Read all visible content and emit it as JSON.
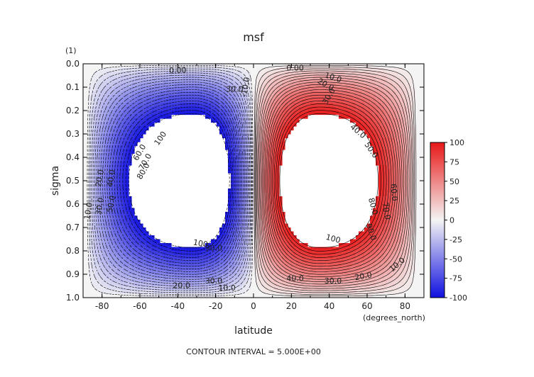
{
  "chart_data": {
    "type": "heatmap",
    "title": "msf",
    "xlabel": "latitude",
    "xunits": "(degrees_north)",
    "ylabel": "sigma",
    "yunits": "(1)",
    "footer": "CONTOUR INTERVAL = 5.000E+00",
    "xlim": [
      -90,
      90
    ],
    "ylim": [
      1.0,
      0.0
    ],
    "x_ticks": [
      "-80",
      "-60",
      "-40",
      "-20",
      "0",
      "20",
      "40",
      "60",
      "80"
    ],
    "x_tick_values": [
      -80,
      -60,
      -40,
      -20,
      0,
      20,
      40,
      60,
      80
    ],
    "y_ticks": [
      "0.0",
      "0.1",
      "0.2",
      "0.3",
      "0.4",
      "0.5",
      "0.6",
      "0.7",
      "0.8",
      "0.9",
      "1.0"
    ],
    "y_tick_values": [
      0.0,
      0.1,
      0.2,
      0.3,
      0.4,
      0.5,
      0.6,
      0.7,
      0.8,
      0.9,
      1.0
    ],
    "colorbar": {
      "ticks": [
        "100",
        "75",
        "50",
        "25",
        "0",
        "-25",
        "-50",
        "-75",
        "-100"
      ],
      "tick_values": [
        100,
        75,
        50,
        25,
        0,
        -25,
        -50,
        -75,
        -100
      ],
      "min": -100,
      "max": 100,
      "colors": {
        "negative": "#1010e0",
        "zero": "#f4f4f4",
        "positive": "#e81818"
      }
    },
    "contour_interval": 5,
    "cells": {
      "south": {
        "sign": -1,
        "peak_lat": -32,
        "peak_sigma": 0.5,
        "edge_lat": -88,
        "peak_value": -100
      },
      "north": {
        "sign": 1,
        "peak_lat": 35,
        "peak_sigma": 0.5,
        "edge_lat": 86,
        "peak_value": 100
      }
    },
    "contour_labels": [
      {
        "text": "0.00",
        "lat": -40,
        "sigma": 0.03,
        "rot": -2
      },
      {
        "text": "0.00",
        "lat": 22,
        "sigma": 0.02,
        "rot": 0
      },
      {
        "text": "10.0",
        "lat": 42,
        "sigma": 0.06,
        "rot": 18
      },
      {
        "text": "20.0",
        "lat": 38,
        "sigma": 0.09,
        "rot": 30
      },
      {
        "text": "30.0",
        "lat": 40,
        "sigma": 0.14,
        "rot": -60
      },
      {
        "text": "40.0",
        "lat": 55,
        "sigma": 0.29,
        "rot": 40
      },
      {
        "text": "50.0",
        "lat": 62,
        "sigma": 0.37,
        "rot": 55
      },
      {
        "text": "60.0",
        "lat": 74,
        "sigma": 0.55,
        "rot": 85
      },
      {
        "text": "70.0",
        "lat": 70,
        "sigma": 0.63,
        "rot": 80
      },
      {
        "text": "80.0",
        "lat": 63,
        "sigma": 0.61,
        "rot": 75
      },
      {
        "text": "90.0",
        "lat": 62,
        "sigma": 0.72,
        "rot": 70
      },
      {
        "text": "100",
        "lat": 42,
        "sigma": 0.75,
        "rot": 15
      },
      {
        "text": "40.0",
        "lat": 22,
        "sigma": 0.92,
        "rot": 0
      },
      {
        "text": "30.0",
        "lat": 42,
        "sigma": 0.93,
        "rot": 0
      },
      {
        "text": "20.0",
        "lat": 58,
        "sigma": 0.91,
        "rot": -10
      },
      {
        "text": "10.0",
        "lat": 76,
        "sigma": 0.86,
        "rot": -40
      },
      {
        "text": "30.0",
        "lat": -10,
        "sigma": 0.11,
        "rot": 0
      },
      {
        "text": "-10.0",
        "lat": -4,
        "sigma": 0.1,
        "rot": -80
      },
      {
        "text": "100",
        "lat": -49,
        "sigma": 0.32,
        "rot": -55
      },
      {
        "text": "60.0",
        "lat": -60,
        "sigma": 0.38,
        "rot": -60
      },
      {
        "text": "70.0",
        "lat": -57,
        "sigma": 0.42,
        "rot": -60
      },
      {
        "text": "80.0",
        "lat": -58,
        "sigma": 0.46,
        "rot": -60
      },
      {
        "text": "20.0",
        "lat": -81,
        "sigma": 0.49,
        "rot": -80
      },
      {
        "text": "40.0",
        "lat": -75,
        "sigma": 0.49,
        "rot": -80
      },
      {
        "text": "10.0",
        "lat": -87,
        "sigma": 0.63,
        "rot": -80
      },
      {
        "text": "30.0",
        "lat": -81,
        "sigma": 0.61,
        "rot": -80
      },
      {
        "text": "50.0",
        "lat": -75,
        "sigma": 0.6,
        "rot": -80
      },
      {
        "text": "100",
        "lat": -28,
        "sigma": 0.77,
        "rot": 10
      },
      {
        "text": "90.0",
        "lat": -21,
        "sigma": 0.79,
        "rot": 0
      },
      {
        "text": "20.0",
        "lat": -38,
        "sigma": 0.95,
        "rot": 0
      },
      {
        "text": "30.0",
        "lat": -21,
        "sigma": 0.93,
        "rot": 0
      },
      {
        "text": "10.0",
        "lat": -14,
        "sigma": 0.96,
        "rot": 0
      }
    ]
  }
}
